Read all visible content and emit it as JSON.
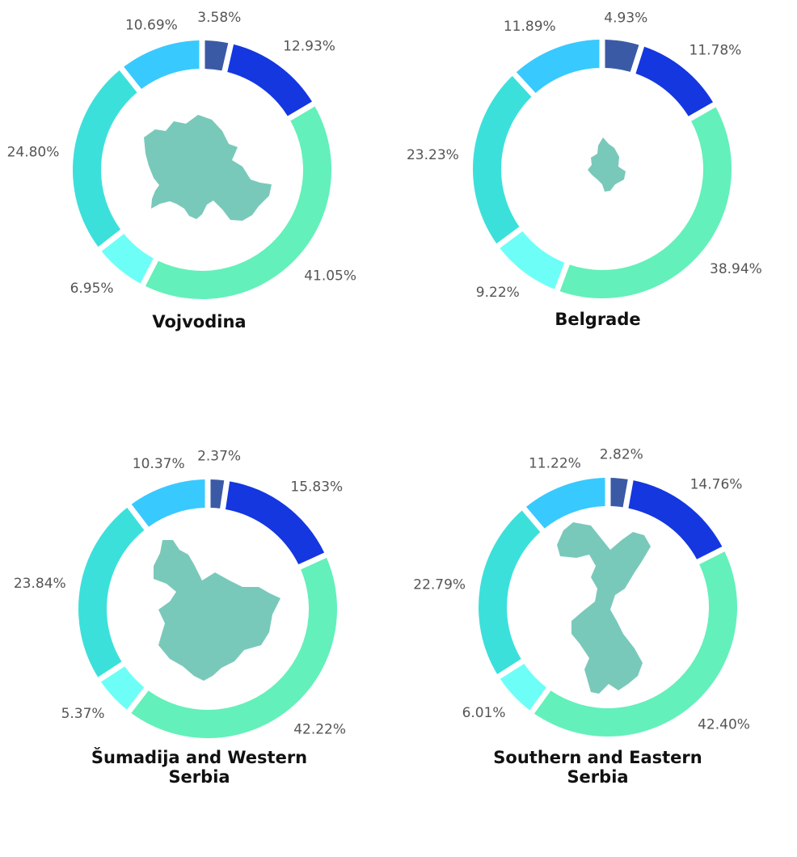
{
  "chart_data": [
    {
      "type": "donut",
      "title": "Vojvodina",
      "values": [
        3.58,
        12.93,
        41.05,
        6.95,
        24.8,
        10.69
      ],
      "labels": [
        "3.58%",
        "12.93%",
        "41.05%",
        "6.95%",
        "24.80%",
        "10.69%"
      ],
      "colors": [
        "#3b5aa6",
        "#1437e0",
        "#63f0bb",
        "#6dfff7",
        "#3ce0db",
        "#38c9ff"
      ],
      "map_color": "#79c9ba"
    },
    {
      "type": "donut",
      "title": "Belgrade",
      "values": [
        4.93,
        11.78,
        38.94,
        9.22,
        23.23,
        11.89
      ],
      "labels": [
        "4.93%",
        "11.78%",
        "38.94%",
        "9.22%",
        "23.23%",
        "11.89%"
      ],
      "colors": [
        "#3b5aa6",
        "#1437e0",
        "#63f0bb",
        "#6dfff7",
        "#3ce0db",
        "#38c9ff"
      ],
      "map_color": "#79c9ba"
    },
    {
      "type": "donut",
      "title": "Šumadija and Western\nSerbia",
      "values": [
        2.37,
        15.83,
        42.22,
        5.37,
        23.84,
        10.37
      ],
      "labels": [
        "2.37%",
        "15.83%",
        "42.22%",
        "5.37%",
        "23.84%",
        "10.37%"
      ],
      "colors": [
        "#3b5aa6",
        "#1437e0",
        "#63f0bb",
        "#6dfff7",
        "#3ce0db",
        "#38c9ff"
      ],
      "map_color": "#79c9ba"
    },
    {
      "type": "donut",
      "title": "Southern and Eastern\nSerbia",
      "values": [
        2.82,
        14.76,
        42.4,
        6.01,
        22.79,
        11.22
      ],
      "labels": [
        "2.82%",
        "14.76%",
        "42.40%",
        "6.01%",
        "22.79%",
        "11.22%"
      ],
      "colors": [
        "#3b5aa6",
        "#1437e0",
        "#63f0bb",
        "#6dfff7",
        "#3ce0db",
        "#38c9ff"
      ],
      "map_color": "#79c9ba"
    }
  ]
}
